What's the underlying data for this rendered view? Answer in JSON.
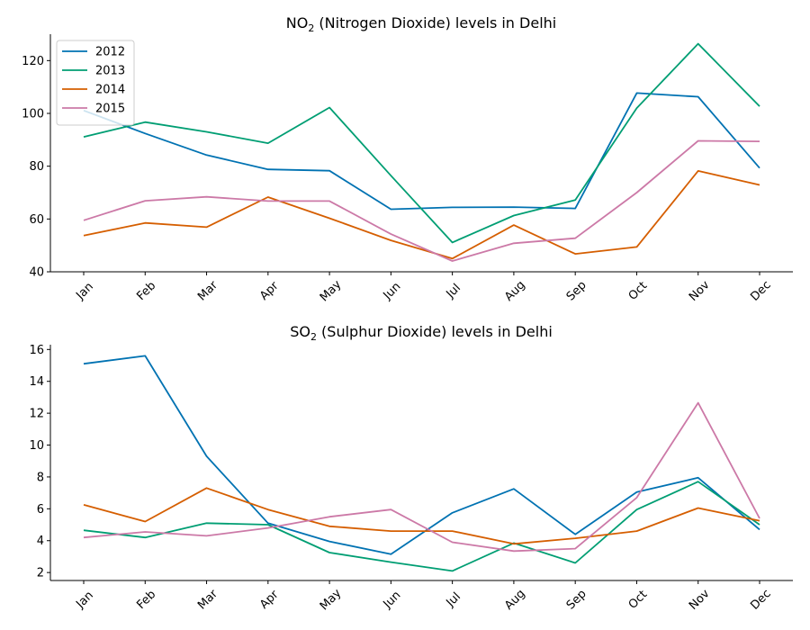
{
  "chart_data": [
    {
      "type": "line",
      "title_main": "NO",
      "title_sub": "2",
      "title_rest": " (Nitrogen Dioxide) levels in Delhi",
      "categories": [
        "Jan",
        "Feb",
        "Mar",
        "Apr",
        "May",
        "Jun",
        "Jul",
        "Aug",
        "Sep",
        "Oct",
        "Nov",
        "Dec"
      ],
      "ylim": [
        40,
        130
      ],
      "yticks": [
        40,
        60,
        80,
        100,
        120
      ],
      "legend_position": "top-left",
      "series": [
        {
          "name": "2012",
          "color": "#0072B2",
          "values": [
            101.1,
            92.4,
            84.2,
            78.8,
            78.3,
            63.7,
            64.4,
            64.5,
            64.0,
            107.7,
            106.3,
            79.3
          ]
        },
        {
          "name": "2013",
          "color": "#009E73",
          "values": [
            91.1,
            96.7,
            93.0,
            88.7,
            102.2,
            76.4,
            51.1,
            61.3,
            67.2,
            102.0,
            126.4,
            102.7
          ]
        },
        {
          "name": "2014",
          "color": "#D55E00",
          "values": [
            53.7,
            58.5,
            56.9,
            68.3,
            60.3,
            51.9,
            45.0,
            57.7,
            46.8,
            49.4,
            78.2,
            72.9
          ]
        },
        {
          "name": "2015",
          "color": "#CC79A7",
          "values": [
            59.5,
            66.9,
            68.4,
            66.8,
            66.8,
            54.3,
            44.1,
            50.8,
            52.7,
            70.0,
            89.6,
            89.4
          ]
        }
      ]
    },
    {
      "type": "line",
      "title_main": "SO",
      "title_sub": "2",
      "title_rest": " (Sulphur Dioxide) levels in Delhi",
      "categories": [
        "Jan",
        "Feb",
        "Mar",
        "Apr",
        "May",
        "Jun",
        "Jul",
        "Aug",
        "Sep",
        "Oct",
        "Nov",
        "Dec"
      ],
      "ylim": [
        1.5,
        16.3
      ],
      "yticks": [
        2,
        4,
        6,
        8,
        10,
        12,
        14,
        16
      ],
      "series": [
        {
          "name": "2012",
          "color": "#0072B2",
          "values": [
            15.1,
            15.6,
            9.3,
            5.1,
            3.95,
            3.15,
            5.75,
            7.25,
            4.4,
            7.05,
            7.95,
            4.7
          ]
        },
        {
          "name": "2013",
          "color": "#009E73",
          "values": [
            4.65,
            4.2,
            5.1,
            5.0,
            3.25,
            2.65,
            2.1,
            3.85,
            2.6,
            5.95,
            7.7,
            5.0
          ]
        },
        {
          "name": "2014",
          "color": "#D55E00",
          "values": [
            6.25,
            5.2,
            7.3,
            5.95,
            4.9,
            4.6,
            4.6,
            3.8,
            4.15,
            4.6,
            6.05,
            5.25
          ]
        },
        {
          "name": "2015",
          "color": "#CC79A7",
          "values": [
            4.2,
            4.55,
            4.3,
            4.8,
            5.5,
            5.95,
            3.9,
            3.35,
            3.5,
            6.7,
            12.65,
            5.4
          ]
        }
      ]
    }
  ]
}
